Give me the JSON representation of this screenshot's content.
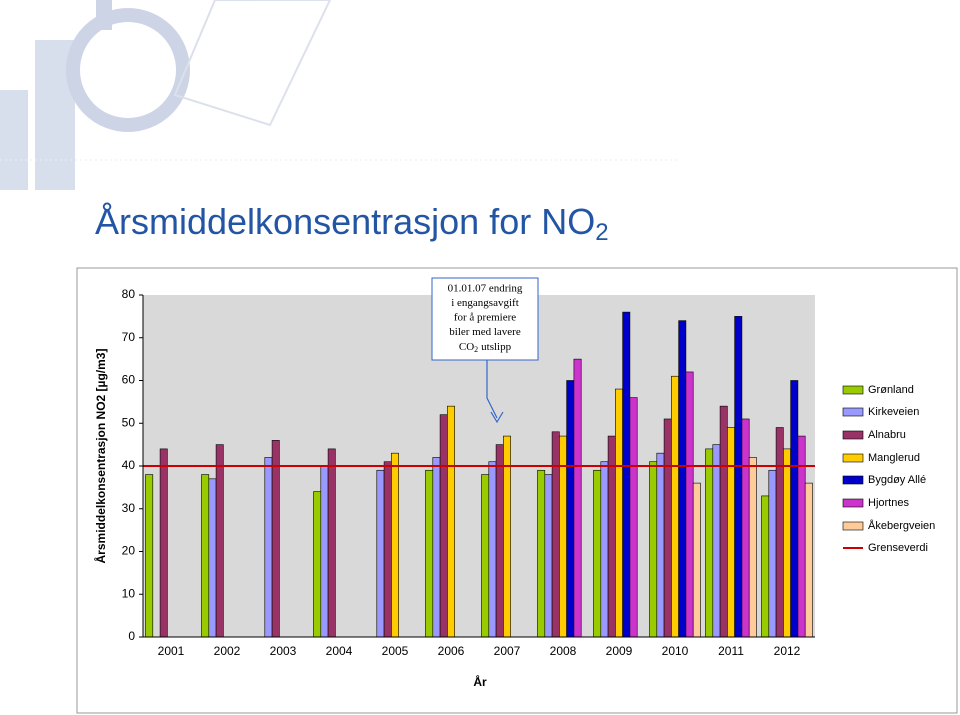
{
  "chart_data": {
    "type": "bar",
    "title": "Årsmiddelkonsentrasjon for NO",
    "title_subscript": "2",
    "y_label": "Årsmiddelkonsentrasjon NO2 [µg/m3]",
    "x_label": "År",
    "annotation_lines": [
      "01.01.07 endring",
      "i engangsavgift",
      "for å premiere",
      "biler med lavere"
    ],
    "annotation_last": [
      "CO",
      "2",
      "utslipp"
    ],
    "categories": [
      "2001",
      "2002",
      "2003",
      "2004",
      "2005",
      "2006",
      "2007",
      "2008",
      "2009",
      "2010",
      "2011",
      "2012"
    ],
    "series": [
      {
        "name": "Grønland",
        "color": "#99cc00",
        "values": [
          38,
          38,
          null,
          34,
          null,
          39,
          38,
          39,
          39,
          41,
          44,
          33
        ]
      },
      {
        "name": "Kirkeveien",
        "color": "#9999ff",
        "values": [
          null,
          37,
          42,
          40,
          39,
          42,
          41,
          38,
          41,
          43,
          45,
          39
        ]
      },
      {
        "name": "Alnabru",
        "color": "#993366",
        "values": [
          44,
          45,
          46,
          44,
          41,
          52,
          45,
          48,
          47,
          51,
          54,
          49
        ]
      },
      {
        "name": "Manglerud",
        "color": "#ffcc00",
        "values": [
          null,
          null,
          null,
          null,
          43,
          54,
          47,
          47,
          58,
          61,
          49,
          44
        ]
      },
      {
        "name": "Bygdøy Allé",
        "color": "#0000cc",
        "values": [
          null,
          null,
          null,
          null,
          null,
          null,
          null,
          60,
          76,
          74,
          75,
          60
        ]
      },
      {
        "name": "Hjortnes",
        "color": "#cc33cc",
        "values": [
          null,
          null,
          null,
          null,
          null,
          null,
          null,
          65,
          56,
          62,
          51,
          47
        ]
      },
      {
        "name": "Åkebergveien",
        "color": "#ffcc99",
        "values": [
          null,
          null,
          null,
          null,
          null,
          null,
          null,
          null,
          null,
          36,
          42,
          36
        ]
      }
    ],
    "threshold": {
      "name": "Grenseverdi",
      "value": 40,
      "color": "#cc0000"
    },
    "ylim": [
      0,
      80
    ],
    "yticks": [
      0,
      10,
      20,
      30,
      40,
      50,
      60,
      70,
      80
    ]
  }
}
